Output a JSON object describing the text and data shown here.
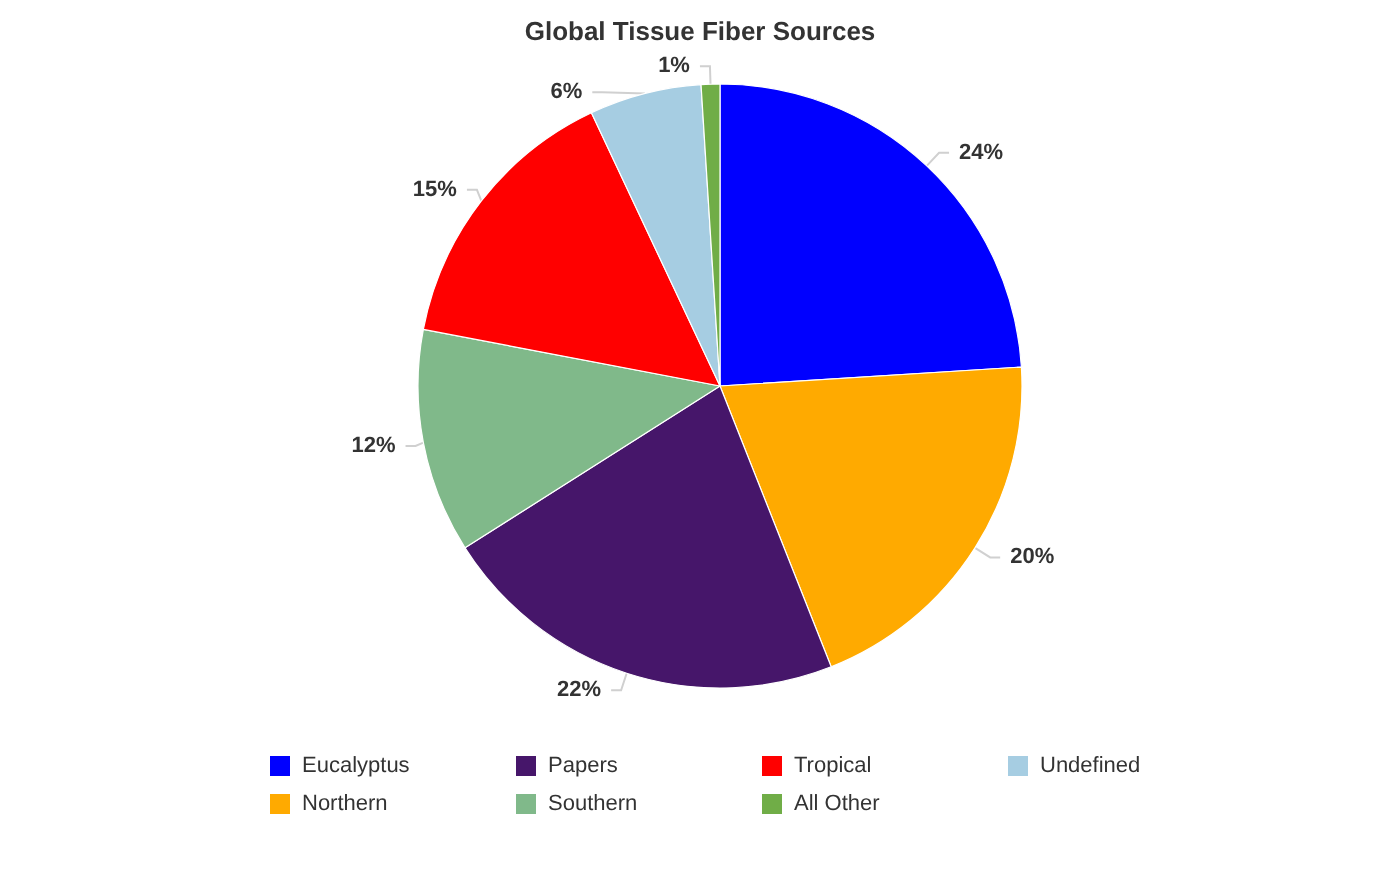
{
  "chart_data": {
    "type": "pie",
    "title": "Global Tissue Fiber Sources",
    "categories": [
      "Eucalyptus",
      "Northern",
      "Papers",
      "Southern",
      "Tropical",
      "Undefined",
      "All Other"
    ],
    "values": [
      24,
      20,
      22,
      12,
      15,
      6,
      1
    ],
    "value_labels": [
      "24%",
      "20%",
      "22%",
      "12%",
      "15%",
      "6%",
      "1%"
    ],
    "colors": [
      "#0000ff",
      "#ffaa00",
      "#46166a",
      "#80b98a",
      "#ff0000",
      "#a6cde2",
      "#70ad47"
    ],
    "legend": "bottom"
  }
}
